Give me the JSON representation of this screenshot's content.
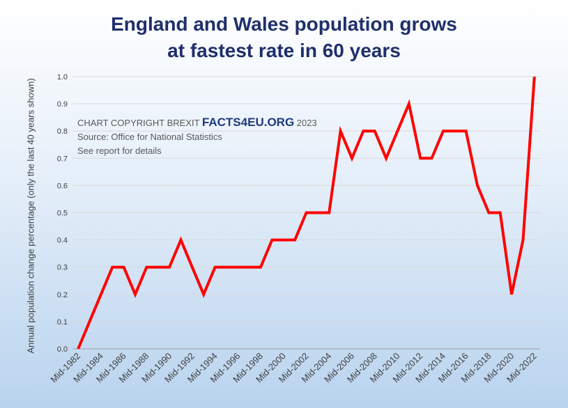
{
  "title": {
    "line1": "England and Wales population grows",
    "line2": "at fastest rate in 60 years"
  },
  "credits": {
    "copyright_prefix": "CHART COPYRIGHT BREXIT",
    "brand": "FACTS4EU.ORG",
    "year": "2023",
    "source": "Source: Office for National Statistics",
    "note": "See report for details"
  },
  "colors": {
    "line": "#ff0000",
    "title": "#1f2f6b",
    "grid": "#d9d9d9",
    "axis": "#9e9e9e"
  },
  "chart_data": {
    "type": "line",
    "title": "England and Wales population grows at fastest rate in 60 years",
    "xlabel": "",
    "ylabel": "Annual population change percentage (only the last 40 years shown)",
    "ylim": [
      0,
      1.0
    ],
    "yticks": [
      "0.0",
      "0.1",
      "0.2",
      "0.3",
      "0.4",
      "0.5",
      "0.6",
      "0.7",
      "0.8",
      "0.9",
      "1.0"
    ],
    "grid": true,
    "legend": "none",
    "x": [
      "Mid-1982",
      "Mid-1983",
      "Mid-1984",
      "Mid-1985",
      "Mid-1986",
      "Mid-1987",
      "Mid-1988",
      "Mid-1989",
      "Mid-1990",
      "Mid-1991",
      "Mid-1992",
      "Mid-1993",
      "Mid-1994",
      "Mid-1995",
      "Mid-1996",
      "Mid-1997",
      "Mid-1998",
      "Mid-1999",
      "Mid-2000",
      "Mid-2001",
      "Mid-2002",
      "Mid-2003",
      "Mid-2004",
      "Mid-2005",
      "Mid-2006",
      "Mid-2007",
      "Mid-2008",
      "Mid-2009",
      "Mid-2010",
      "Mid-2011",
      "Mid-2012",
      "Mid-2013",
      "Mid-2014",
      "Mid-2015",
      "Mid-2016",
      "Mid-2017",
      "Mid-2018",
      "Mid-2019",
      "Mid-2020",
      "Mid-2021",
      "Mid-2022"
    ],
    "x_tick_labels": [
      "Mid-1982",
      "Mid-1984",
      "Mid-1986",
      "Mid-1988",
      "Mid-1990",
      "Mid-1992",
      "Mid-1994",
      "Mid-1996",
      "Mid-1998",
      "Mid-2000",
      "Mid-2002",
      "Mid-2004",
      "Mid-2006",
      "Mid-2008",
      "Mid-2010",
      "Mid-2012",
      "Mid-2014",
      "Mid-2016",
      "Mid-2018",
      "Mid-2020",
      "Mid-2022"
    ],
    "series": [
      {
        "values": [
          0.0,
          0.1,
          0.2,
          0.3,
          0.3,
          0.2,
          0.3,
          0.3,
          0.3,
          0.4,
          0.3,
          0.2,
          0.3,
          0.3,
          0.3,
          0.3,
          0.3,
          0.4,
          0.4,
          0.4,
          0.5,
          0.5,
          0.5,
          0.8,
          0.7,
          0.8,
          0.8,
          0.7,
          0.8,
          0.9,
          0.7,
          0.7,
          0.8,
          0.8,
          0.8,
          0.6,
          0.5,
          0.5,
          0.2,
          0.4,
          1.0
        ]
      }
    ]
  }
}
